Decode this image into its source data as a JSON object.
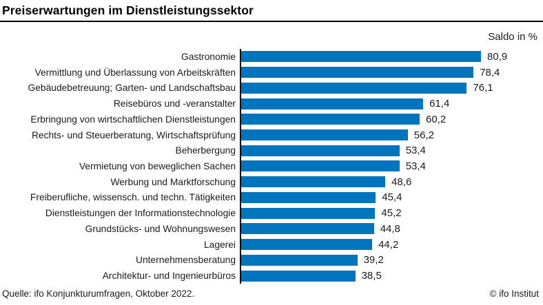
{
  "header": {
    "title": "Preiserwartungen im Dienstleistungssektor",
    "unit_label": "Saldo in %"
  },
  "chart_data": {
    "type": "bar",
    "orientation": "horizontal",
    "title": "Preiserwartungen im Dienstleistungssektor",
    "unit": "Saldo in %",
    "xlim": [
      0,
      81
    ],
    "grid": false,
    "legend": "none",
    "bar_color": "#0074BC",
    "categories": [
      "Gastronomie",
      "Vermittlung und Überlassung von Arbeitskräften",
      "Gebäudebetreuung; Garten- und Landschaftsbau",
      "Reisebüros und -veranstalter",
      "Erbringung von wirtschaftlichen Dienstleistungen",
      "Rechts- und Steuerberatung, Wirtschaftsprüfung",
      "Beherbergung",
      "Vermietung von beweglichen Sachen",
      "Werbung und Marktforschung",
      "Freiberufliche, wissensch. und techn. Tätigkeiten",
      "Dienstleistungen der Informationstechnologie",
      "Grundstücks- und Wohnungswesen",
      "Lagerei",
      "Unternehmensberatung",
      "Architektur- und Ingenieurbüros"
    ],
    "values": [
      80.9,
      78.4,
      76.1,
      61.4,
      60.2,
      56.2,
      53.4,
      53.4,
      48.6,
      45.4,
      45.2,
      44.8,
      44.2,
      39.2,
      38.5
    ],
    "value_labels": [
      "80,9",
      "78,4",
      "76,1",
      "61,4",
      "60,2",
      "56,2",
      "53,4",
      "53,4",
      "48,6",
      "45,4",
      "45,2",
      "44,8",
      "44,2",
      "39,2",
      "38,5"
    ]
  },
  "footer": {
    "source": "Quelle: ifo Konjunkturumfragen, Oktober 2022.",
    "copyright": "© ifo Institut"
  }
}
